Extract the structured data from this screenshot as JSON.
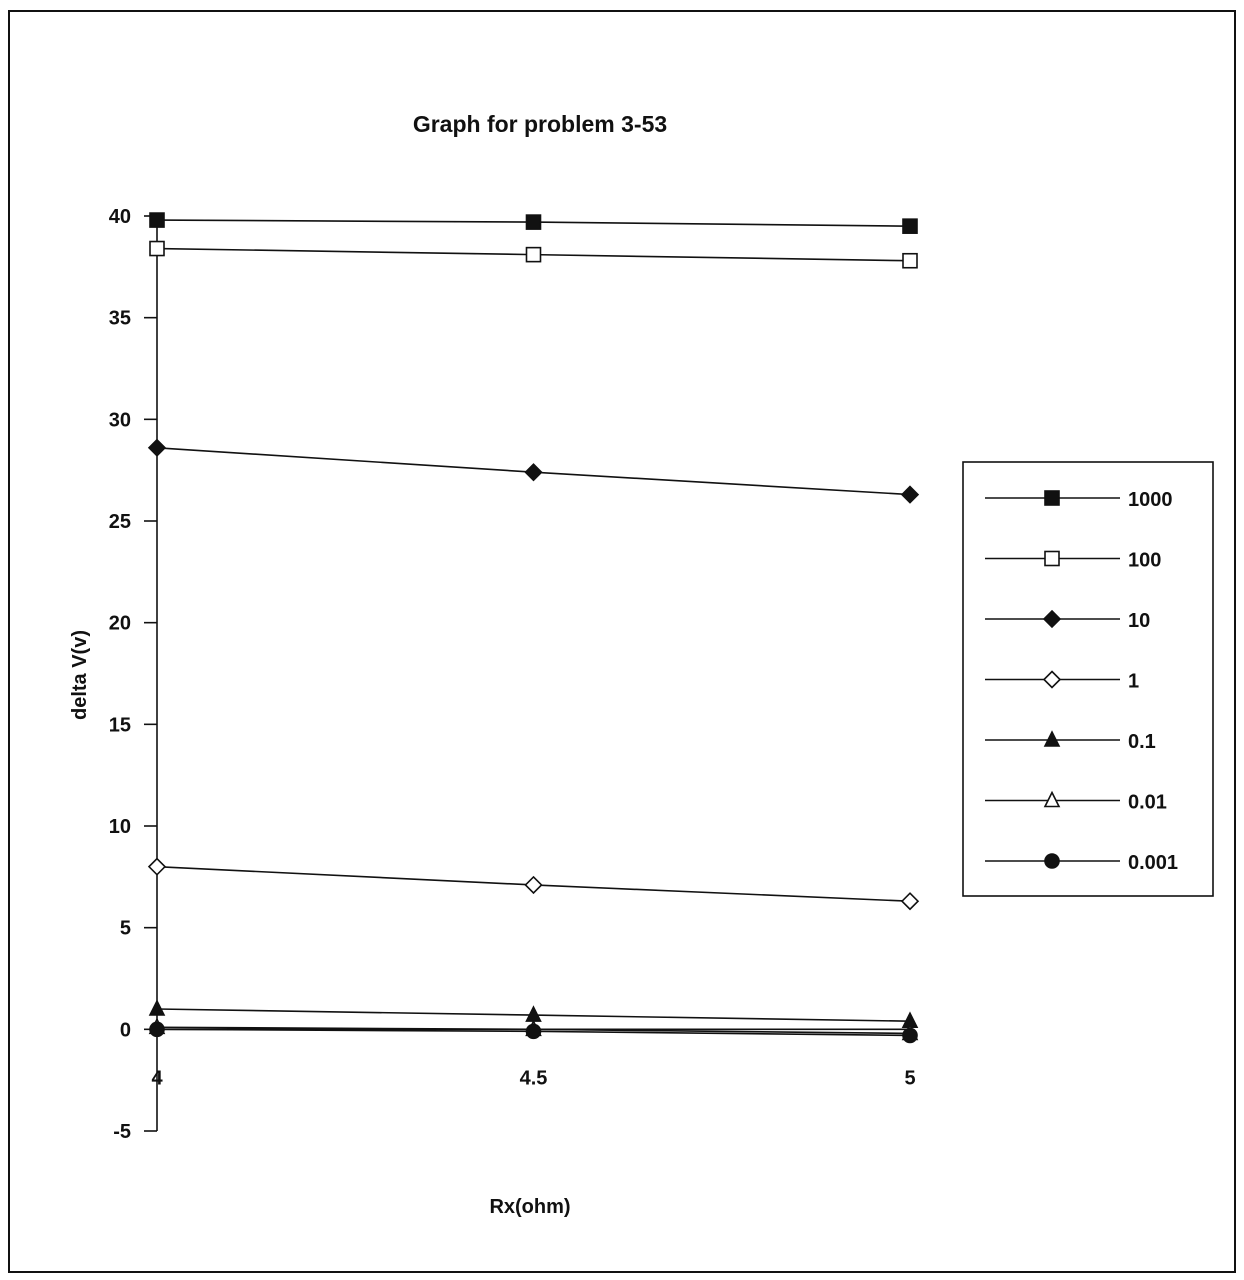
{
  "chart_data": {
    "type": "line",
    "title": "Graph for problem 3-53",
    "xlabel": "Rx(ohm)",
    "ylabel": "delta V(v)",
    "x": [
      4,
      4.5,
      5
    ],
    "x_tick_labels": [
      "4",
      "4.5",
      "5"
    ],
    "ylim": [
      -5,
      40
    ],
    "y_ticks": [
      -5,
      0,
      5,
      10,
      15,
      20,
      25,
      30,
      35,
      40
    ],
    "grid": false,
    "legend_position": "right",
    "colors": {
      "line": "#111111",
      "marker_fill_dark": "#111111",
      "marker_fill_light": "#ffffff"
    },
    "series": [
      {
        "name": "1000",
        "marker": "square-filled",
        "values": [
          39.8,
          39.7,
          39.5
        ]
      },
      {
        "name": "100",
        "marker": "square-open",
        "values": [
          38.4,
          38.1,
          37.8
        ]
      },
      {
        "name": "10",
        "marker": "diamond-filled",
        "values": [
          28.6,
          27.4,
          26.3
        ]
      },
      {
        "name": "1",
        "marker": "diamond-open",
        "values": [
          8.0,
          7.1,
          6.3
        ]
      },
      {
        "name": "0.1",
        "marker": "triangle-filled",
        "values": [
          1.0,
          0.7,
          0.4
        ]
      },
      {
        "name": "0.01",
        "marker": "triangle-open",
        "values": [
          0.1,
          0.0,
          -0.2
        ]
      },
      {
        "name": "0.001",
        "marker": "circle-filled",
        "values": [
          0.0,
          -0.1,
          -0.3
        ]
      }
    ]
  }
}
